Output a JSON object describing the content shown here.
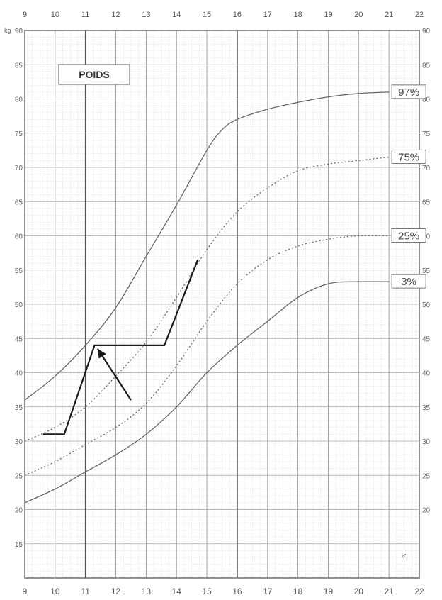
{
  "chart_data": {
    "type": "line",
    "title": "POIDS",
    "ylabel": "kg",
    "x_ticks": [
      9,
      10,
      11,
      12,
      13,
      14,
      15,
      16,
      17,
      18,
      19,
      20,
      21,
      22
    ],
    "y_ticks": [
      15,
      20,
      25,
      30,
      35,
      40,
      45,
      50,
      55,
      60,
      65,
      70,
      75,
      80,
      85,
      90
    ],
    "y_ticks_right": [
      20,
      25,
      30,
      35,
      40,
      45,
      50,
      55,
      60,
      65,
      70,
      75,
      80,
      85,
      90
    ],
    "xlim": [
      9,
      22
    ],
    "ylim": [
      10,
      90
    ],
    "grid": true,
    "series": [
      {
        "name": "97%",
        "style": "solid",
        "x": [
          9,
          10,
          11,
          12,
          13,
          14,
          15,
          15.5,
          16,
          17,
          18,
          19,
          20,
          21
        ],
        "y": [
          36,
          39.5,
          44,
          49.5,
          57,
          64.5,
          72.5,
          75.5,
          77,
          78.5,
          79.5,
          80.3,
          80.8,
          81
        ]
      },
      {
        "name": "75%",
        "style": "dotted",
        "x": [
          9,
          10,
          11,
          12,
          13,
          14,
          15,
          16,
          17,
          18,
          19,
          20,
          21
        ],
        "y": [
          30,
          32,
          35,
          39.5,
          44.5,
          51,
          58,
          63.5,
          67,
          69.5,
          70.5,
          71,
          71.5
        ]
      },
      {
        "name": "25%",
        "style": "dotted",
        "x": [
          9,
          10,
          11,
          12,
          13,
          14,
          15,
          16,
          17,
          18,
          19,
          20,
          21
        ],
        "y": [
          25,
          27,
          29.5,
          32,
          35.5,
          41,
          47.5,
          53,
          56.5,
          58.5,
          59.5,
          60,
          60
        ]
      },
      {
        "name": "3%",
        "style": "solid",
        "x": [
          9,
          10,
          11,
          12,
          13,
          14,
          15,
          16,
          17,
          18,
          19,
          20,
          21
        ],
        "y": [
          21,
          23,
          25.5,
          28,
          31,
          35,
          40,
          44,
          47.5,
          51,
          53,
          53.3,
          53.3
        ]
      },
      {
        "name": "",
        "style": "patient",
        "x": [
          9.6,
          10.3,
          11.3,
          13.6,
          14.7
        ],
        "y": [
          31,
          31,
          44,
          44,
          56.5
        ]
      }
    ],
    "annotation_arrow": {
      "from": [
        12.5,
        36
      ],
      "to": [
        11.4,
        43.5
      ]
    }
  }
}
